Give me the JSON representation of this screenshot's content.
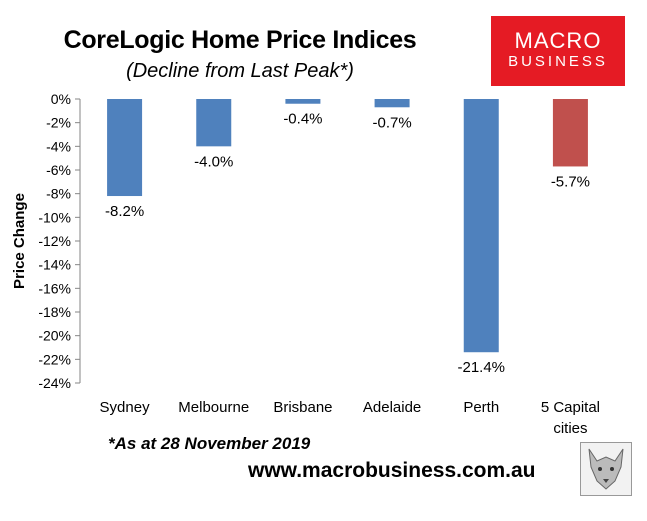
{
  "header": {
    "title": "CoreLogic Home Price Indices",
    "subtitle": "(Decline from Last Peak*)"
  },
  "logo": {
    "line1": "MACRO",
    "line2": "BUSINESS",
    "color": "#e51b24"
  },
  "footer": {
    "note": "*As at 28 November 2019",
    "website": "www.macrobusiness.com.au",
    "badge_icon": "wolf-icon"
  },
  "chart_data": {
    "type": "bar",
    "ylabel": "Price Change",
    "ylim": [
      -24,
      0
    ],
    "ytick_step": 2,
    "ytick_format": "percent",
    "grid": false,
    "legend": "none",
    "categories": [
      [
        "Sydney"
      ],
      [
        "Melbourne"
      ],
      [
        "Brisbane"
      ],
      [
        "Adelaide"
      ],
      [
        "Perth"
      ],
      [
        "5 Capital",
        "cities"
      ]
    ],
    "values": [
      -8.2,
      -4.0,
      -0.4,
      -0.7,
      -21.4,
      -5.7
    ],
    "data_labels": [
      "-8.2%",
      "-4.0%",
      "-0.4%",
      "-0.7%",
      "-21.4%",
      "-5.7%"
    ],
    "colors": [
      "#4f81bd",
      "#4f81bd",
      "#4f81bd",
      "#4f81bd",
      "#4f81bd",
      "#c0504d"
    ]
  }
}
